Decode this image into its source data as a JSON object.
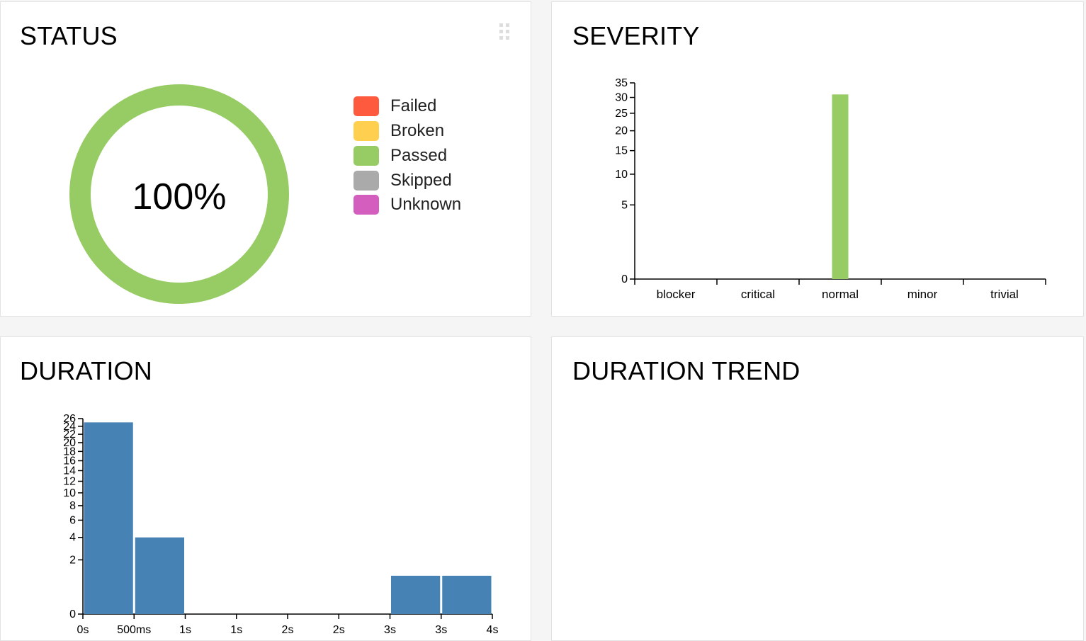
{
  "status": {
    "title": "STATUS",
    "center_label": "100%",
    "ring_color": "#97cc64",
    "legend": [
      {
        "label": "Failed",
        "color": "#fd5a3e",
        "icon": "failed-swatch"
      },
      {
        "label": "Broken",
        "color": "#ffd050",
        "icon": "broken-swatch"
      },
      {
        "label": "Passed",
        "color": "#97cc64",
        "icon": "passed-swatch"
      },
      {
        "label": "Skipped",
        "color": "#aaaaaa",
        "icon": "skipped-swatch"
      },
      {
        "label": "Unknown",
        "color": "#d35ebe",
        "icon": "unknown-swatch"
      }
    ],
    "drag_icon": "drag-handle-icon"
  },
  "severity": {
    "title": "SEVERITY",
    "chart_data": {
      "type": "bar",
      "categories": [
        "blocker",
        "critical",
        "normal",
        "minor",
        "trivial"
      ],
      "values": [
        0,
        0,
        31,
        0,
        0
      ],
      "ylim": [
        0,
        35
      ],
      "yscale": "sqrt",
      "yticks": [
        0,
        5,
        10,
        15,
        20,
        25,
        30,
        35
      ],
      "bar_color": "#97cc64",
      "grid": false
    }
  },
  "duration": {
    "title": "DURATION",
    "chart_data": {
      "type": "bar",
      "x_tick_labels": [
        "0s",
        "500ms",
        "1s",
        "1s",
        "2s",
        "2s",
        "3s",
        "3s",
        "4s"
      ],
      "bins": [
        {
          "label": "0s – 500ms",
          "value": 25
        },
        {
          "label": "500ms – 1s",
          "value": 4
        },
        {
          "label": "1s – 1s",
          "value": 0
        },
        {
          "label": "1s – 2s",
          "value": 0
        },
        {
          "label": "2s – 2s",
          "value": 0
        },
        {
          "label": "2s – 3s",
          "value": 0
        },
        {
          "label": "3s – 3s",
          "value": 1
        },
        {
          "label": "3s – 4s",
          "value": 1
        }
      ],
      "ylim": [
        0,
        26
      ],
      "yscale": "sqrt",
      "yticks": [
        0,
        2,
        4,
        6,
        8,
        10,
        12,
        14,
        16,
        18,
        20,
        22,
        24,
        26
      ],
      "bar_color": "#4682b4",
      "grid": false
    }
  },
  "duration_trend": {
    "title": "DURATION TREND"
  }
}
